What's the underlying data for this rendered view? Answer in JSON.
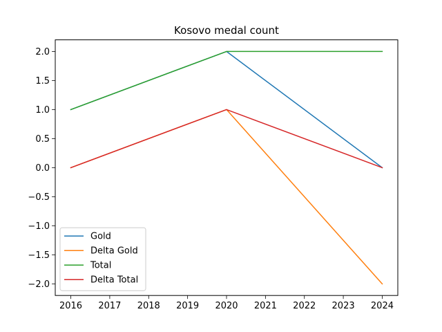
{
  "chart_data": {
    "type": "line",
    "title": "Kosovo medal count",
    "xlabel": "",
    "ylabel": "",
    "x": [
      2016,
      2020,
      2024
    ],
    "x_ticks": [
      2016,
      2017,
      2018,
      2019,
      2020,
      2021,
      2022,
      2023,
      2024
    ],
    "y_ticks": [
      2.0,
      1.5,
      1.0,
      0.5,
      0.0,
      -0.5,
      -1.0,
      -1.5,
      -2.0
    ],
    "xlim": [
      2015.6,
      2024.4
    ],
    "ylim": [
      -2.2,
      2.2
    ],
    "grid": false,
    "legend_position": "lower-left",
    "series": [
      {
        "name": "Gold",
        "values": [
          1,
          2,
          0
        ],
        "color": "#1f77b4"
      },
      {
        "name": "Delta Gold",
        "values": [
          0,
          1,
          -2
        ],
        "color": "#ff7f0e"
      },
      {
        "name": "Total",
        "values": [
          1,
          2,
          2
        ],
        "color": "#2ca02c"
      },
      {
        "name": "Delta Total",
        "values": [
          0,
          1,
          0
        ],
        "color": "#d62728"
      }
    ]
  }
}
